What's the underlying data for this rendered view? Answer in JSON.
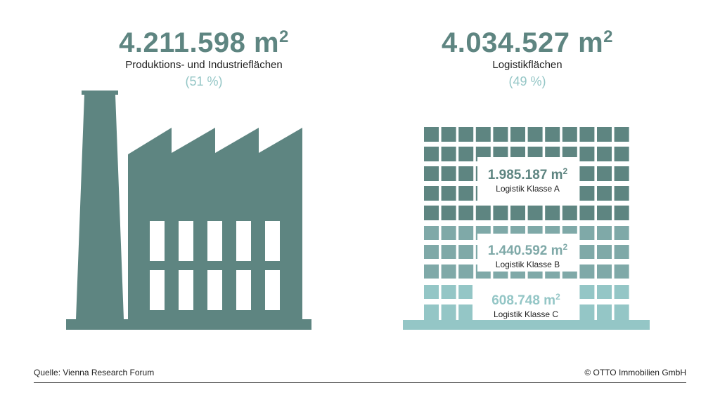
{
  "left": {
    "value": "4.211.598 m",
    "unit_sup": "2",
    "label": "Produktions- und Industrieflächen",
    "percent": "(51 %)"
  },
  "right": {
    "value": "4.034.527 m",
    "unit_sup": "2",
    "label": "Logistikflächen",
    "percent": "(49 %)"
  },
  "classes": [
    {
      "value": "1.985.187 m",
      "sup": "2",
      "label": "Logistik Klasse A"
    },
    {
      "value": "1.440.592 m",
      "sup": "2",
      "label": "Logistik Klasse B"
    },
    {
      "value": "608.748 m",
      "sup": "2",
      "label": "Logistik Klasse C"
    }
  ],
  "footer": {
    "source": "Quelle: Vienna Research Forum",
    "copyright": "© OTTO Immobilien GmbH"
  },
  "colors": {
    "dark": "#5e8581",
    "mid": "#7fa9a8",
    "light": "#94c6c6"
  }
}
